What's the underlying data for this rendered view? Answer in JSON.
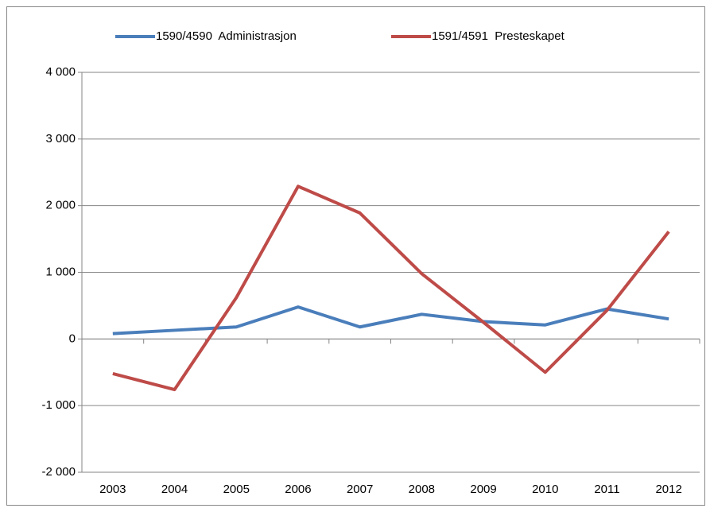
{
  "chart_data": {
    "type": "line",
    "categories": [
      "2003",
      "2004",
      "2005",
      "2006",
      "2007",
      "2008",
      "2009",
      "2010",
      "2011",
      "2012"
    ],
    "series": [
      {
        "name": "1590/4590  Administrasjon",
        "color": "#4a7ebb",
        "values": [
          80,
          130,
          180,
          480,
          180,
          370,
          260,
          210,
          450,
          300
        ]
      },
      {
        "name": "1591/4591  Presteskapet",
        "color": "#be4b48",
        "values": [
          -520,
          -760,
          620,
          2290,
          1890,
          980,
          250,
          -500,
          430,
          1610
        ]
      }
    ],
    "ylim": [
      -2000,
      4000
    ],
    "yticks": [
      {
        "value": -2000,
        "label": "-2 000"
      },
      {
        "value": -1000,
        "label": "-1 000"
      },
      0,
      {
        "value": 1000,
        "label": "1 000"
      },
      {
        "value": 2000,
        "label": "2 000"
      },
      {
        "value": 3000,
        "label": "3 000"
      },
      {
        "value": 4000,
        "label": "4 000"
      }
    ],
    "grid": true,
    "legend": "top"
  }
}
